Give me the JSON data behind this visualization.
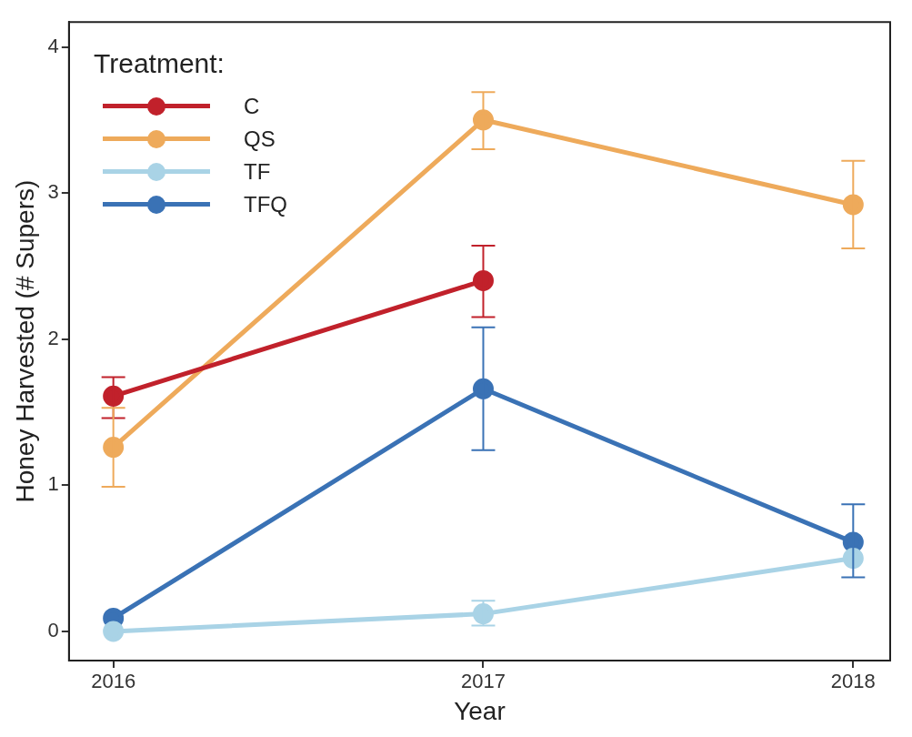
{
  "chart_data": {
    "type": "line",
    "xlabel": "Year",
    "ylabel": "Honey Harvested (# Supers)",
    "legend_title": "Treatment:",
    "legend": "top left",
    "grid": false,
    "marker": "circle",
    "line_style": "solid",
    "categories": [
      "2016",
      "2017",
      "2018"
    ],
    "ylim": [
      -0.2,
      4.17
    ],
    "yticks": [
      0,
      1,
      2,
      3,
      4
    ],
    "series": [
      {
        "name": "C",
        "color": "#c1212b",
        "values": [
          1.61,
          2.4,
          null
        ],
        "errors": [
          [
            1.46,
            1.74
          ],
          [
            2.15,
            2.64
          ],
          null
        ]
      },
      {
        "name": "QS",
        "color": "#eeaa5b",
        "values": [
          1.26,
          3.5,
          2.92
        ],
        "errors": [
          [
            0.99,
            1.53
          ],
          [
            3.3,
            3.69
          ],
          [
            2.62,
            3.22
          ]
        ]
      },
      {
        "name": "TF",
        "color": "#a9d3e6",
        "values": [
          0,
          0.12,
          0.5
        ],
        "errors": [
          null,
          [
            0.04,
            0.21
          ],
          null
        ]
      },
      {
        "name": "TFQ",
        "color": "#3a72b5",
        "values": [
          0.09,
          1.66,
          0.61
        ],
        "errors": [
          null,
          [
            1.24,
            2.08
          ],
          [
            0.37,
            0.87
          ]
        ]
      }
    ]
  }
}
